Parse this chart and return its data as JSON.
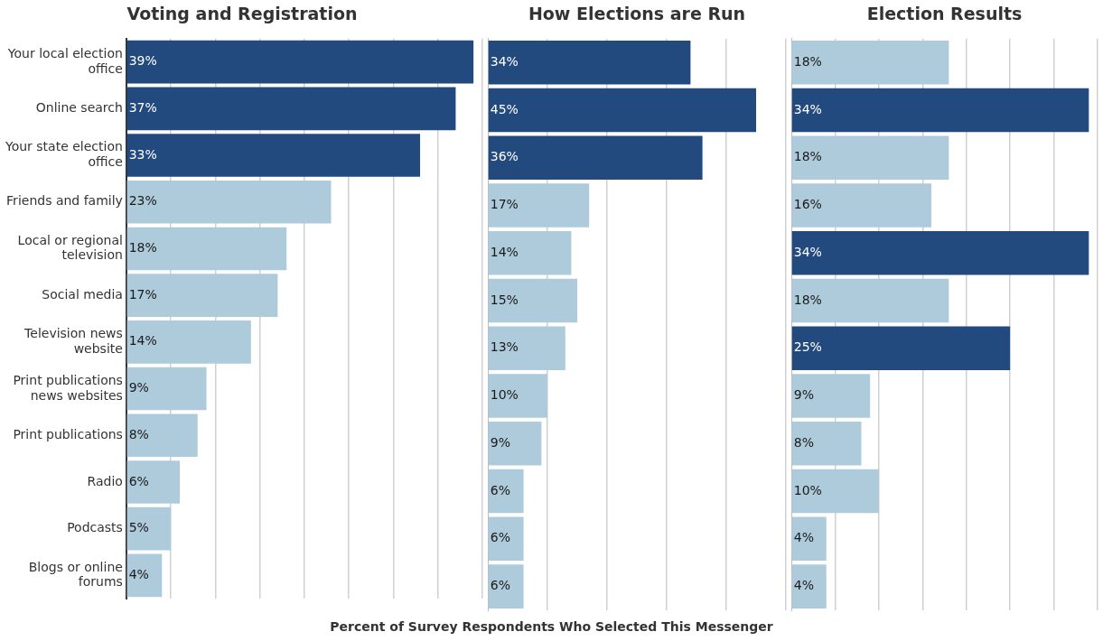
{
  "chart_data": [
    {
      "type": "bar",
      "orientation": "horizontal",
      "title": "Voting and Registration",
      "categories": [
        "Your local election office",
        "Online search",
        "Your state election office",
        "Friends and family",
        "Local or regional television",
        "Social media",
        "Television news website",
        "Print publications news websites",
        "Print publications",
        "Radio",
        "Podcasts",
        "Blogs or online forums"
      ],
      "values": [
        39,
        37,
        33,
        23,
        18,
        17,
        14,
        9,
        8,
        6,
        5,
        4
      ],
      "value_labels": [
        "39%",
        "37%",
        "33%",
        "23%",
        "18%",
        "17%",
        "14%",
        "9%",
        "8%",
        "6%",
        "5%",
        "4%"
      ],
      "colors": [
        "#234a7e",
        "#234a7e",
        "#234a7e",
        "#aecbdc",
        "#aecbdc",
        "#aecbdc",
        "#aecbdc",
        "#aecbdc",
        "#aecbdc",
        "#aecbdc",
        "#aecbdc",
        "#aecbdc"
      ],
      "grid": "x",
      "tick_labels": "y"
    },
    {
      "type": "bar",
      "orientation": "horizontal",
      "title": "How Elections are Run",
      "xlabel": "Percent of Survey Respondents Who Selected This Messenger",
      "categories": [
        null,
        null,
        null,
        null,
        null,
        null,
        null,
        null,
        null,
        null,
        null,
        null
      ],
      "values": [
        34,
        45,
        36,
        17,
        14,
        15,
        13,
        10,
        9,
        6,
        6,
        6
      ],
      "value_labels": [
        "34%",
        "45%",
        "36%",
        "17%",
        "14%",
        "15%",
        "13%",
        "10%",
        "9%",
        "6%",
        "6%",
        "6%"
      ],
      "colors": [
        "#234a7e",
        "#234a7e",
        "#234a7e",
        "#aecbdc",
        "#aecbdc",
        "#aecbdc",
        "#aecbdc",
        "#aecbdc",
        "#aecbdc",
        "#aecbdc",
        "#aecbdc",
        "#aecbdc"
      ],
      "grid": "x",
      "tick_labels": false
    },
    {
      "type": "bar",
      "orientation": "horizontal",
      "title": "Election Results",
      "categories": [
        null,
        null,
        null,
        null,
        null,
        null,
        null,
        null,
        null,
        null,
        null,
        null
      ],
      "values": [
        18,
        34,
        18,
        16,
        34,
        18,
        25,
        9,
        8,
        10,
        4,
        4
      ],
      "value_labels": [
        "18%",
        "34%",
        "18%",
        "16%",
        "34%",
        "18%",
        "25%",
        "9%",
        "8%",
        "10%",
        "4%",
        "4%"
      ],
      "colors": [
        "#aecbdc",
        "#234a7e",
        "#aecbdc",
        "#aecbdc",
        "#234a7e",
        "#aecbdc",
        "#234a7e",
        "#aecbdc",
        "#aecbdc",
        "#aecbdc",
        "#aecbdc",
        "#aecbdc"
      ],
      "grid": "x",
      "tick_labels": false
    }
  ]
}
